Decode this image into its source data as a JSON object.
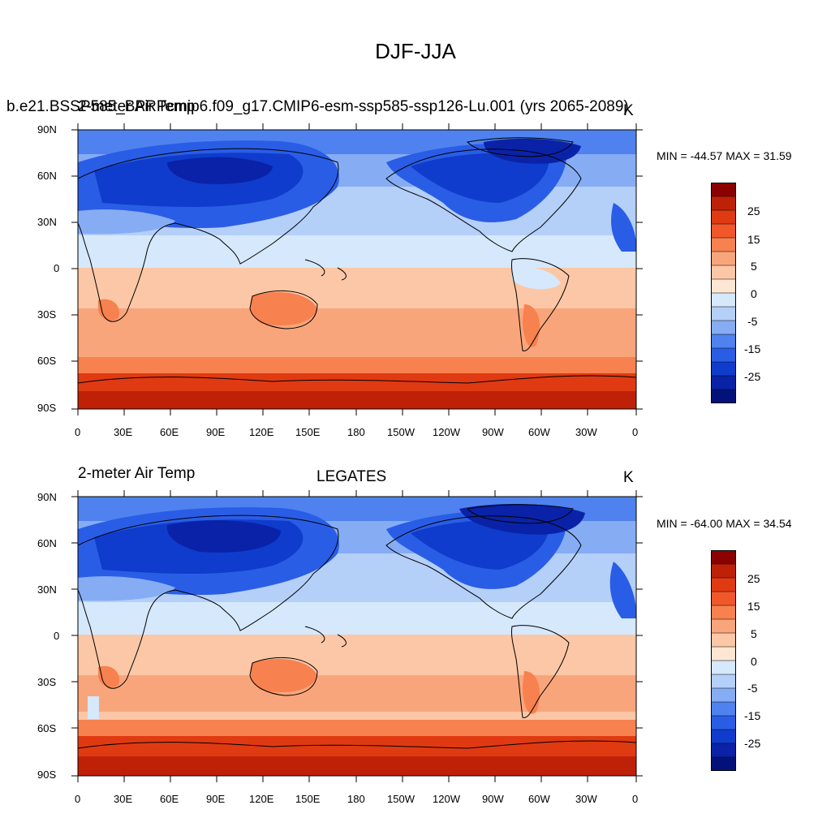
{
  "figure": {
    "title": "DJF-JJA"
  },
  "panels": [
    {
      "id": "model",
      "left_label": "2-meter Air Temp",
      "center_label": "b.e21.BSSP585_BPRPcmip6.f09_g17.CMIP6-esm-ssp585-ssp126-Lu.001 (yrs 2065-2089)",
      "right_label": "K",
      "stats": "MIN = -44.57 MAX =  31.59"
    },
    {
      "id": "obs",
      "left_label": "2-meter Air Temp",
      "center_label": "LEGATES",
      "right_label": "K",
      "stats": "MIN = -64.00 MAX =  34.54"
    }
  ],
  "axes": {
    "lat_labels": [
      "90N",
      "60N",
      "30N",
      "0",
      "30S",
      "60S",
      "90S"
    ],
    "lon_labels": [
      "0",
      "30E",
      "60E",
      "90E",
      "120E",
      "150E",
      "180",
      "150W",
      "120W",
      "90W",
      "60W",
      "30W",
      "0"
    ]
  },
  "colorbar": {
    "labels": [
      "25",
      "15",
      "5",
      "0",
      "-5",
      "-15",
      "-25"
    ],
    "colors": [
      "#8b0000",
      "#bf2108",
      "#e03a12",
      "#f2572a",
      "#f7814f",
      "#f9a57b",
      "#fbc7a6",
      "#fde6d2",
      "#d6e8fb",
      "#b4cff8",
      "#86acf4",
      "#4f82ee",
      "#2a5de6",
      "#0f3ccc",
      "#0a22a8",
      "#03127a"
    ]
  },
  "colors": {
    "deep_blue": "#0a22a8",
    "mid_blue": "#2a5de6",
    "light_blue": "#b4cff8",
    "pale_blue": "#d6e8fb",
    "pale_orange": "#fbc7a6",
    "orange": "#f7814f",
    "red": "#bf2108"
  }
}
